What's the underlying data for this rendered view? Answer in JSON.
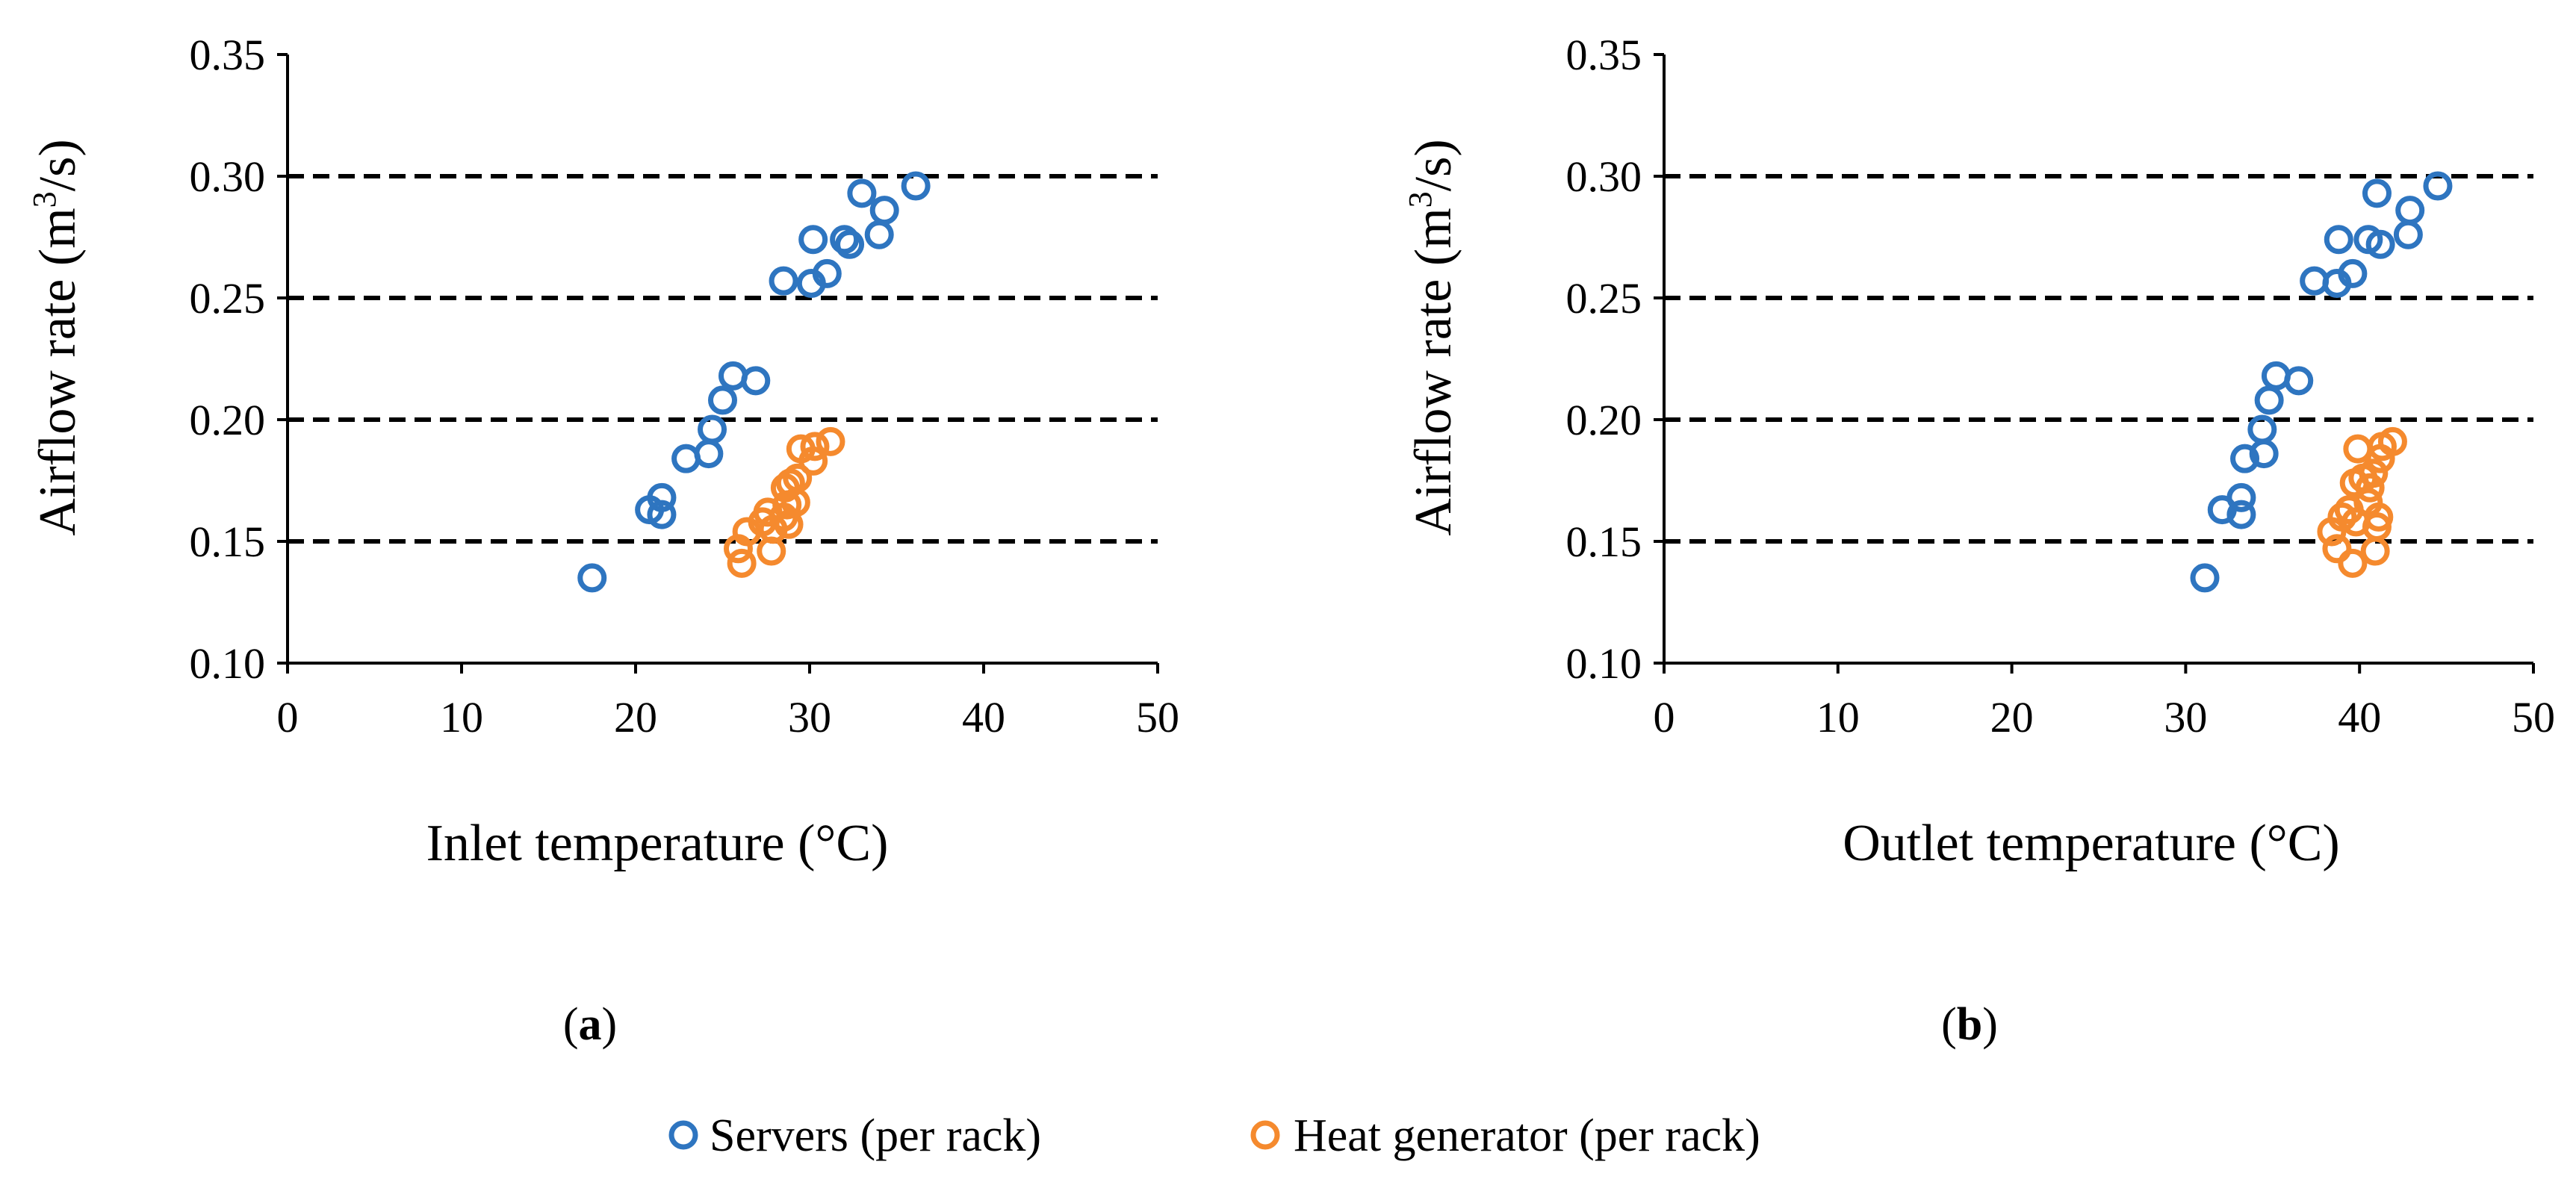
{
  "colors": {
    "servers": "#2E75C0",
    "heat_generator": "#F58A2E",
    "axis": "#000000",
    "gridline": "#000000"
  },
  "legend": {
    "servers_label": "Servers (per rack)",
    "heat_label": "Heat generator (per rack)"
  },
  "chart_data": [
    {
      "type": "scatter",
      "panel_label": "a",
      "xlabel": "Inlet temperature (°C)",
      "ylabel_main": "Airflow rate (m",
      "ylabel_sup": "3",
      "ylabel_end": "/s)",
      "xlim": [
        0,
        50
      ],
      "ylim": [
        0.1,
        0.35
      ],
      "x_ticks": [
        "0",
        "10",
        "20",
        "30",
        "40",
        "50"
      ],
      "y_ticks": [
        "0.10",
        "0.15",
        "0.20",
        "0.25",
        "0.30",
        "0.35"
      ],
      "gridlines": [
        0.15,
        0.2,
        0.25,
        0.3
      ],
      "series": [
        {
          "name": "Servers (per rack)",
          "points": [
            [
              17.5,
              0.135
            ],
            [
              20.8,
              0.163
            ],
            [
              21.5,
              0.168
            ],
            [
              21.5,
              0.161
            ],
            [
              22.9,
              0.184
            ],
            [
              24.2,
              0.186
            ],
            [
              24.4,
              0.196
            ],
            [
              25.0,
              0.208
            ],
            [
              25.6,
              0.218
            ],
            [
              26.9,
              0.216
            ],
            [
              28.5,
              0.257
            ],
            [
              30.1,
              0.256
            ],
            [
              31.0,
              0.26
            ],
            [
              30.2,
              0.274
            ],
            [
              32.0,
              0.274
            ],
            [
              32.3,
              0.272
            ],
            [
              33.0,
              0.293
            ],
            [
              34.0,
              0.276
            ],
            [
              34.3,
              0.286
            ],
            [
              36.1,
              0.296
            ]
          ]
        },
        {
          "name": "Heat generator (per rack)",
          "points": [
            [
              25.9,
              0.147
            ],
            [
              26.1,
              0.141
            ],
            [
              26.4,
              0.154
            ],
            [
              27.3,
              0.158
            ],
            [
              27.6,
              0.162
            ],
            [
              27.8,
              0.146
            ],
            [
              27.9,
              0.155
            ],
            [
              28.5,
              0.16
            ],
            [
              28.8,
              0.157
            ],
            [
              28.7,
              0.165
            ],
            [
              28.6,
              0.172
            ],
            [
              28.9,
              0.174
            ],
            [
              29.2,
              0.166
            ],
            [
              29.3,
              0.176
            ],
            [
              29.5,
              0.188
            ],
            [
              30.2,
              0.183
            ],
            [
              30.3,
              0.189
            ],
            [
              31.2,
              0.191
            ]
          ]
        }
      ]
    },
    {
      "type": "scatter",
      "panel_label": "b",
      "xlabel": "Outlet temperature (°C)",
      "ylabel_main": "Airflow rate (m",
      "ylabel_sup": "3",
      "ylabel_end": "/s)",
      "xlim": [
        0,
        50
      ],
      "ylim": [
        0.1,
        0.35
      ],
      "x_ticks": [
        "0",
        "10",
        "20",
        "30",
        "40",
        "50"
      ],
      "y_ticks": [
        "0.10",
        "0.15",
        "0.20",
        "0.25",
        "0.30",
        "0.35"
      ],
      "gridlines": [
        0.15,
        0.2,
        0.25,
        0.3
      ],
      "series": [
        {
          "name": "Servers (per rack)",
          "points": [
            [
              31.1,
              0.135
            ],
            [
              32.1,
              0.163
            ],
            [
              33.2,
              0.168
            ],
            [
              33.2,
              0.161
            ],
            [
              33.4,
              0.184
            ],
            [
              34.5,
              0.186
            ],
            [
              34.4,
              0.196
            ],
            [
              34.8,
              0.208
            ],
            [
              35.2,
              0.218
            ],
            [
              36.5,
              0.216
            ],
            [
              37.4,
              0.257
            ],
            [
              38.7,
              0.256
            ],
            [
              39.6,
              0.26
            ],
            [
              38.8,
              0.274
            ],
            [
              40.5,
              0.274
            ],
            [
              41.2,
              0.272
            ],
            [
              41.0,
              0.293
            ],
            [
              42.8,
              0.276
            ],
            [
              42.9,
              0.286
            ],
            [
              44.5,
              0.296
            ]
          ]
        },
        {
          "name": "Heat generator (per rack)",
          "points": [
            [
              38.4,
              0.154
            ],
            [
              38.7,
              0.147
            ],
            [
              39.0,
              0.16
            ],
            [
              39.4,
              0.163
            ],
            [
              39.6,
              0.141
            ],
            [
              39.8,
              0.158
            ],
            [
              39.7,
              0.174
            ],
            [
              39.9,
              0.188
            ],
            [
              40.2,
              0.176
            ],
            [
              40.5,
              0.166
            ],
            [
              40.6,
              0.172
            ],
            [
              40.8,
              0.178
            ],
            [
              40.9,
              0.146
            ],
            [
              41.0,
              0.156
            ],
            [
              41.1,
              0.16
            ],
            [
              41.2,
              0.184
            ],
            [
              41.3,
              0.189
            ],
            [
              41.9,
              0.191
            ]
          ]
        }
      ]
    }
  ]
}
